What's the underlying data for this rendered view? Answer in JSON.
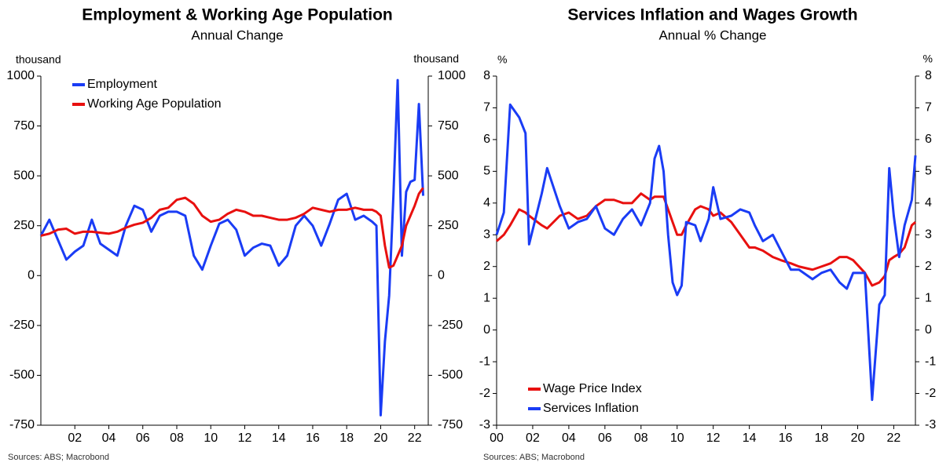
{
  "chart_data": [
    {
      "type": "line",
      "title": "Employment & Working Age Population",
      "subtitle": "Annual Change",
      "y_label": "thousand",
      "y2_label": "thousand",
      "source": "Sources: ABS; Macrobond",
      "x": [
        2000,
        2000.5,
        2001,
        2001.5,
        2002,
        2002.5,
        2003,
        2003.5,
        2004,
        2004.5,
        2005,
        2005.5,
        2006,
        2006.5,
        2007,
        2007.5,
        2008,
        2008.5,
        2009,
        2009.5,
        2010,
        2010.5,
        2011,
        2011.5,
        2012,
        2012.5,
        2013,
        2013.5,
        2014,
        2014.5,
        2015,
        2015.5,
        2016,
        2016.5,
        2017,
        2017.5,
        2018,
        2018.5,
        2019,
        2019.5,
        2019.75,
        2020,
        2020.25,
        2020.5,
        2020.75,
        2021,
        2021.25,
        2021.5,
        2021.75,
        2022,
        2022.25,
        2022.5
      ],
      "xlim": [
        2000,
        2022.8
      ],
      "xticks": [
        {
          "value": 2002,
          "label": "02"
        },
        {
          "value": 2004,
          "label": "04"
        },
        {
          "value": 2006,
          "label": "06"
        },
        {
          "value": 2008,
          "label": "08"
        },
        {
          "value": 2010,
          "label": "10"
        },
        {
          "value": 2012,
          "label": "12"
        },
        {
          "value": 2014,
          "label": "14"
        },
        {
          "value": 2016,
          "label": "16"
        },
        {
          "value": 2018,
          "label": "18"
        },
        {
          "value": 2020,
          "label": "20"
        },
        {
          "value": 2022,
          "label": "22"
        }
      ],
      "ylim": [
        -750,
        1000
      ],
      "yticks": [
        -750,
        -500,
        -250,
        0,
        250,
        500,
        750,
        1000
      ],
      "y2lim": [
        -750,
        1000
      ],
      "y2ticks": [
        -750,
        -500,
        -250,
        0,
        250,
        500,
        750,
        1000
      ],
      "legend": "upper left",
      "series": [
        {
          "name": "Employment",
          "color": "#1a3cf5",
          "values": [
            200,
            280,
            180,
            80,
            120,
            150,
            280,
            160,
            130,
            100,
            250,
            350,
            330,
            220,
            300,
            320,
            320,
            300,
            100,
            30,
            150,
            260,
            280,
            230,
            100,
            140,
            160,
            150,
            50,
            100,
            250,
            300,
            250,
            150,
            260,
            380,
            410,
            280,
            300,
            270,
            250,
            -700,
            -330,
            -100,
            400,
            980,
            100,
            420,
            470,
            480,
            860,
            400
          ]
        },
        {
          "name": "Working Age Population",
          "color": "#e8100f",
          "values": [
            200,
            210,
            230,
            235,
            210,
            220,
            220,
            215,
            210,
            220,
            240,
            255,
            265,
            290,
            330,
            340,
            380,
            390,
            360,
            300,
            270,
            280,
            310,
            330,
            320,
            300,
            300,
            290,
            280,
            280,
            290,
            310,
            340,
            330,
            320,
            330,
            330,
            340,
            330,
            330,
            320,
            300,
            150,
            40,
            50,
            100,
            150,
            250,
            300,
            350,
            410,
            440
          ]
        }
      ]
    },
    {
      "type": "line",
      "title": "Services Inflation and Wages Growth",
      "subtitle": "Annual % Change",
      "y_label": "%",
      "y2_label": "%",
      "source": "Sources: ABS; Macrobond",
      "x": [
        2000,
        2000.4,
        2000.75,
        2001.25,
        2001.6,
        2001.8,
        2002.5,
        2002.8,
        2003.5,
        2004,
        2004.5,
        2005,
        2005.5,
        2006,
        2006.5,
        2007,
        2007.5,
        2008,
        2008.5,
        2008.75,
        2009,
        2009.25,
        2009.5,
        2009.75,
        2010,
        2010.25,
        2010.5,
        2011,
        2011.3,
        2011.75,
        2012,
        2012.4,
        2013,
        2013.5,
        2014,
        2014.3,
        2014.75,
        2015.3,
        2015.75,
        2016.3,
        2016.75,
        2017.5,
        2018,
        2018.5,
        2019,
        2019.4,
        2019.75,
        2020.4,
        2020.8,
        2021.2,
        2021.5,
        2021.75,
        2022,
        2022.3,
        2022.6,
        2023,
        2023.2
      ],
      "xlim": [
        2000,
        2023.2
      ],
      "xticks": [
        {
          "value": 2000,
          "label": "00"
        },
        {
          "value": 2002,
          "label": "02"
        },
        {
          "value": 2004,
          "label": "04"
        },
        {
          "value": 2006,
          "label": "06"
        },
        {
          "value": 2008,
          "label": "08"
        },
        {
          "value": 2010,
          "label": "10"
        },
        {
          "value": 2012,
          "label": "12"
        },
        {
          "value": 2014,
          "label": "14"
        },
        {
          "value": 2016,
          "label": "16"
        },
        {
          "value": 2018,
          "label": "18"
        },
        {
          "value": 2020,
          "label": "20"
        },
        {
          "value": 2022,
          "label": "22"
        }
      ],
      "ylim": [
        -3,
        8
      ],
      "yticks": [
        -3,
        -2,
        -1,
        0,
        1,
        2,
        3,
        4,
        5,
        6,
        7,
        8
      ],
      "y2lim": [
        -3,
        8
      ],
      "y2ticks": [
        -3,
        -2,
        -1,
        0,
        1,
        2,
        3,
        4,
        5,
        6,
        7,
        8
      ],
      "legend": "lower left",
      "series": [
        {
          "name": "Wage Price Index",
          "color": "#e8100f",
          "values": [
            2.8,
            3.0,
            3.3,
            3.8,
            3.7,
            3.6,
            3.3,
            3.2,
            3.6,
            3.7,
            3.5,
            3.6,
            3.9,
            4.1,
            4.1,
            4.0,
            4.0,
            4.3,
            4.1,
            4.2,
            4.2,
            4.2,
            3.8,
            3.4,
            3.0,
            3.0,
            3.3,
            3.8,
            3.9,
            3.8,
            3.6,
            3.7,
            3.4,
            3.0,
            2.6,
            2.6,
            2.5,
            2.3,
            2.2,
            2.1,
            2.0,
            1.9,
            2.0,
            2.1,
            2.3,
            2.3,
            2.2,
            1.8,
            1.4,
            1.5,
            1.7,
            2.2,
            2.3,
            2.4,
            2.6,
            3.3,
            3.4
          ]
        },
        {
          "name": "Services Inflation",
          "color": "#1a3cf5",
          "values": [
            3.0,
            3.7,
            7.1,
            6.7,
            6.2,
            2.7,
            4.3,
            5.1,
            3.9,
            3.2,
            3.4,
            3.5,
            3.9,
            3.2,
            3.0,
            3.5,
            3.8,
            3.3,
            4.0,
            5.4,
            5.8,
            5.0,
            3.0,
            1.5,
            1.1,
            1.4,
            3.4,
            3.3,
            2.8,
            3.5,
            4.5,
            3.5,
            3.6,
            3.8,
            3.7,
            3.3,
            2.8,
            3.0,
            2.5,
            1.9,
            1.9,
            1.6,
            1.8,
            1.9,
            1.5,
            1.3,
            1.8,
            1.8,
            -2.2,
            0.8,
            1.1,
            5.1,
            3.6,
            2.3,
            3.3,
            4.1,
            5.5
          ]
        }
      ]
    }
  ]
}
